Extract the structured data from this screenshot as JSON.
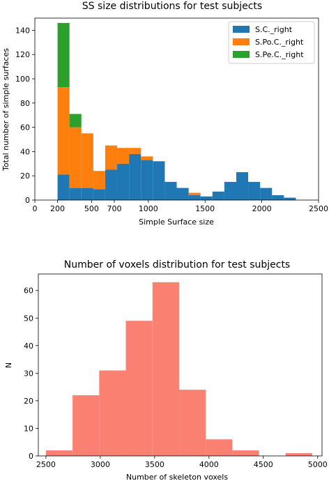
{
  "chart_data": [
    {
      "type": "bar",
      "subtype": "stacked-histogram",
      "title": "SS size distributions for test subjects",
      "xlabel": "Simple Surface size",
      "ylabel": "Total number of simple surfaces",
      "xlim": [
        0,
        2500
      ],
      "ylim": [
        0,
        150
      ],
      "xticks": [
        0,
        200,
        500,
        700,
        1000,
        1500,
        2000,
        2500
      ],
      "xtick_labels": [
        "0",
        "200",
        "500",
        "700",
        "1000",
        "1500",
        "2000",
        "2500"
      ],
      "yticks": [
        0,
        20,
        40,
        60,
        80,
        100,
        120,
        140
      ],
      "ytick_labels": [
        "0",
        "20",
        "40",
        "60",
        "80",
        "100",
        "120",
        "140"
      ],
      "bin_edges": [
        200,
        305,
        410,
        515,
        620,
        725,
        830,
        935,
        1040,
        1145,
        1250,
        1355,
        1460,
        1565,
        1670,
        1775,
        1880,
        1985,
        2090,
        2195,
        2300
      ],
      "legend_position": "top-right",
      "series": [
        {
          "name": "S.C._right",
          "color": "#1f77b4",
          "values": [
            21,
            10,
            10,
            9,
            25,
            30,
            38,
            33,
            32,
            15,
            10,
            4,
            3,
            7,
            15,
            23,
            15,
            10,
            4,
            2
          ]
        },
        {
          "name": "S.Po.C._right",
          "color": "#ff7f0e",
          "values": [
            72,
            50,
            45,
            15,
            20,
            13,
            5,
            3,
            0,
            0,
            0,
            2,
            0,
            0,
            0,
            0,
            0,
            0,
            0,
            0
          ]
        },
        {
          "name": "S.Pe.C._right",
          "color": "#2ca02c",
          "values": [
            53,
            11,
            0,
            0,
            0,
            0,
            0,
            0,
            0,
            0,
            0,
            0,
            0,
            0,
            0,
            0,
            0,
            0,
            0,
            0
          ]
        }
      ]
    },
    {
      "type": "bar",
      "subtype": "histogram",
      "title": "Number of voxels distribution for test subjects",
      "xlabel": "Number of skeleton voxels",
      "ylabel": "N",
      "xlim": [
        2430,
        5040
      ],
      "ylim": [
        0,
        66
      ],
      "xticks": [
        2500,
        3000,
        3500,
        4000,
        4500,
        5000
      ],
      "xtick_labels": [
        "2500",
        "3000",
        "3500",
        "4000",
        "4500",
        "5000"
      ],
      "yticks": [
        0,
        10,
        20,
        30,
        40,
        50,
        60
      ],
      "ytick_labels": [
        "0",
        "10",
        "20",
        "30",
        "40",
        "50",
        "60"
      ],
      "color": "#fa8072",
      "bin_edges": [
        2500,
        2745,
        2990,
        3235,
        3480,
        3725,
        3970,
        4215,
        4460,
        4705,
        4950
      ],
      "values": [
        2,
        22,
        31,
        49,
        63,
        24,
        6,
        2,
        0,
        1
      ]
    }
  ]
}
